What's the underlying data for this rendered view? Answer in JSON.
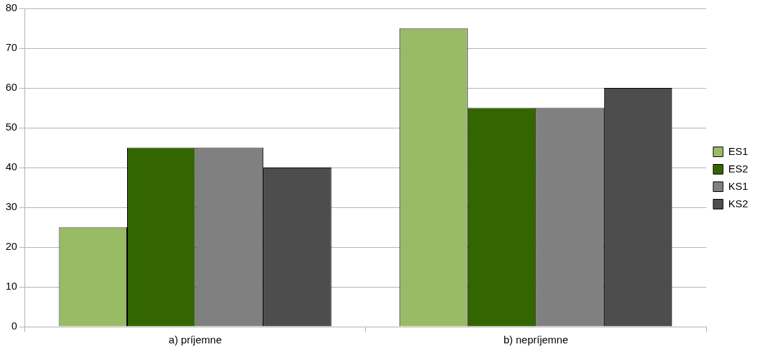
{
  "chart_data": {
    "type": "bar",
    "categories": [
      "a) príjemne",
      "b) nepríjemne"
    ],
    "series": [
      {
        "name": "ES1",
        "color": "#99bb66",
        "values": [
          25,
          75
        ]
      },
      {
        "name": "ES2",
        "color": "#336600",
        "values": [
          45,
          55
        ]
      },
      {
        "name": "KS1",
        "color": "#808080",
        "values": [
          45,
          55
        ]
      },
      {
        "name": "KS2",
        "color": "#4d4d4d",
        "values": [
          40,
          60
        ]
      }
    ],
    "ylim": [
      0,
      80
    ],
    "yticks": [
      0,
      10,
      20,
      30,
      40,
      50,
      60,
      70,
      80
    ],
    "grid": "y",
    "legend": "right"
  }
}
